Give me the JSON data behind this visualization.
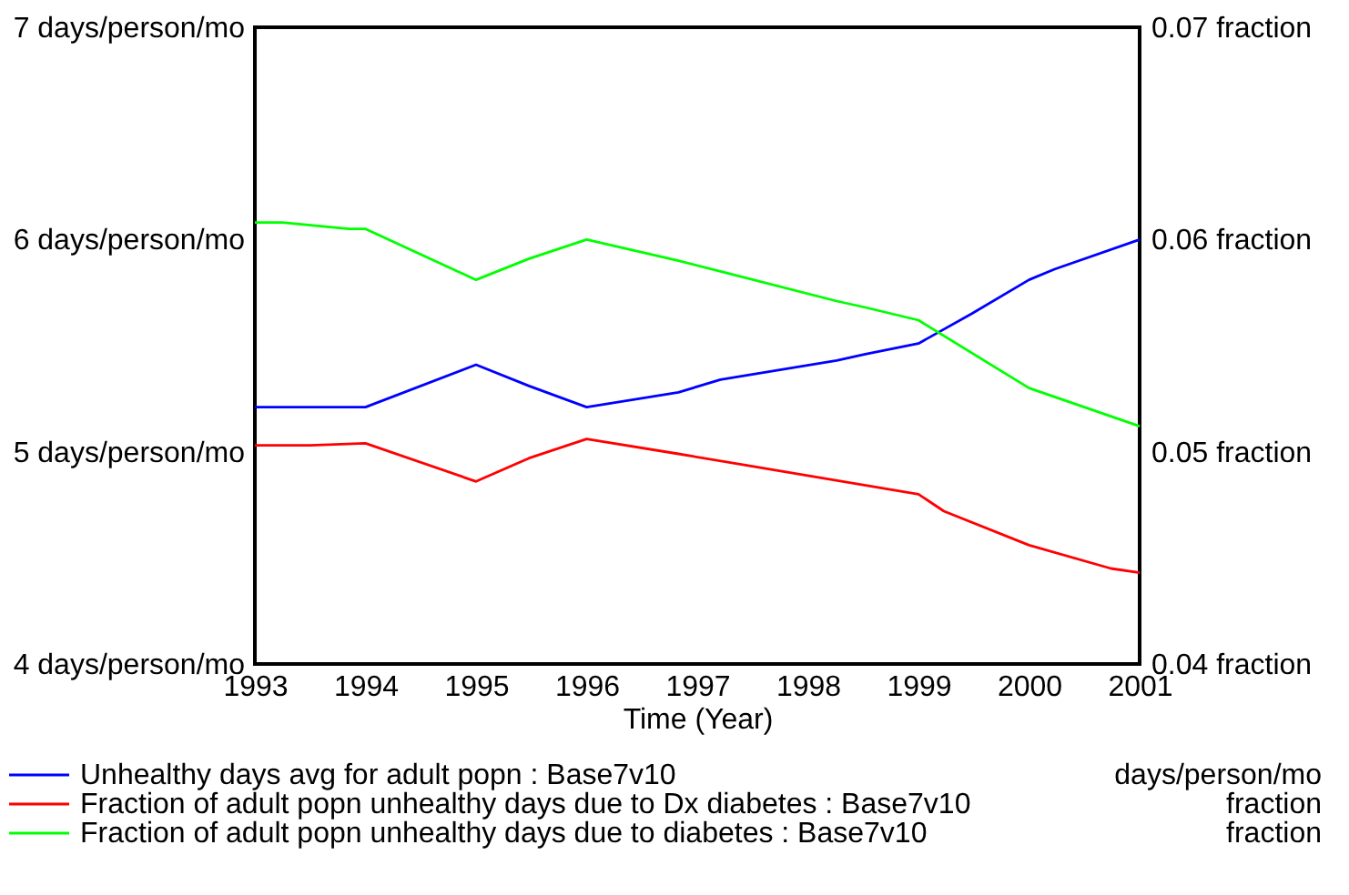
{
  "chart_data": {
    "type": "line",
    "xlabel": "Time (Year)",
    "annotations": [
      "days/person/mo",
      "fraction",
      "fraction"
    ],
    "xlim": [
      1993,
      2001
    ],
    "xticks": [
      1993,
      1994,
      1995,
      1996,
      1997,
      1998,
      1999,
      2000,
      2001
    ],
    "ylim": [
      4,
      7
    ],
    "yticks": [
      {
        "value": 4,
        "label": "4 days/person/mo"
      },
      {
        "value": 5,
        "label": "5 days/person/mo"
      },
      {
        "value": 6,
        "label": "6 days/person/mo"
      },
      {
        "value": 7,
        "label": "7 days/person/mo"
      }
    ],
    "y2lim": [
      0.04,
      0.07
    ],
    "y2ticks": [
      {
        "value": 0.04,
        "label": "0.04 fraction"
      },
      {
        "value": 0.05,
        "label": "0.05 fraction"
      },
      {
        "value": 0.06,
        "label": "0.06 fraction"
      },
      {
        "value": 0.07,
        "label": "0.07 fraction"
      }
    ],
    "grid": false,
    "legend": "bottom",
    "series": [
      {
        "name": "Unhealthy days avg for adult popn : Base7v10",
        "color": "#0000ff",
        "x": [
          1993,
          1994,
          1995,
          1995.48,
          1996,
          1996.83,
          1997.21,
          1998.26,
          1998.52,
          1999,
          1999.48,
          2000,
          2000.23,
          2001
        ],
        "values": [
          5.21,
          5.21,
          5.41,
          5.31,
          5.21,
          5.28,
          5.34,
          5.43,
          5.46,
          5.51,
          5.65,
          5.81,
          5.86,
          6.0
        ]
      },
      {
        "name": "Fraction of adult popn unhealthy days due to Dx diabetes : Base7v10",
        "color": "#ff0000",
        "axis": "y2",
        "x": [
          1993,
          1993.5,
          1994,
          1995,
          1995.48,
          1996,
          1996.83,
          1999,
          1999.23,
          2000,
          2000.74,
          2001
        ],
        "values": [
          0.0503,
          0.0503,
          0.0504,
          0.0486,
          0.0497,
          0.0506,
          0.0499,
          0.048,
          0.0472,
          0.0456,
          0.0445,
          0.0443
        ]
      },
      {
        "name": "Fraction of adult popn unhealthy days due to diabetes : Base7v10",
        "color": "#00ff00",
        "axis": "y2",
        "x": [
          1993,
          1993.25,
          1993.85,
          1994,
          1995,
          1995.48,
          1996,
          1996.83,
          1997.21,
          1998.26,
          1998.52,
          1999,
          2000,
          2001
        ],
        "values": [
          0.0608,
          0.0608,
          0.0605,
          0.0605,
          0.0581,
          0.0591,
          0.06,
          0.059,
          0.0585,
          0.0571,
          0.0568,
          0.0562,
          0.053,
          0.0512
        ]
      }
    ]
  }
}
